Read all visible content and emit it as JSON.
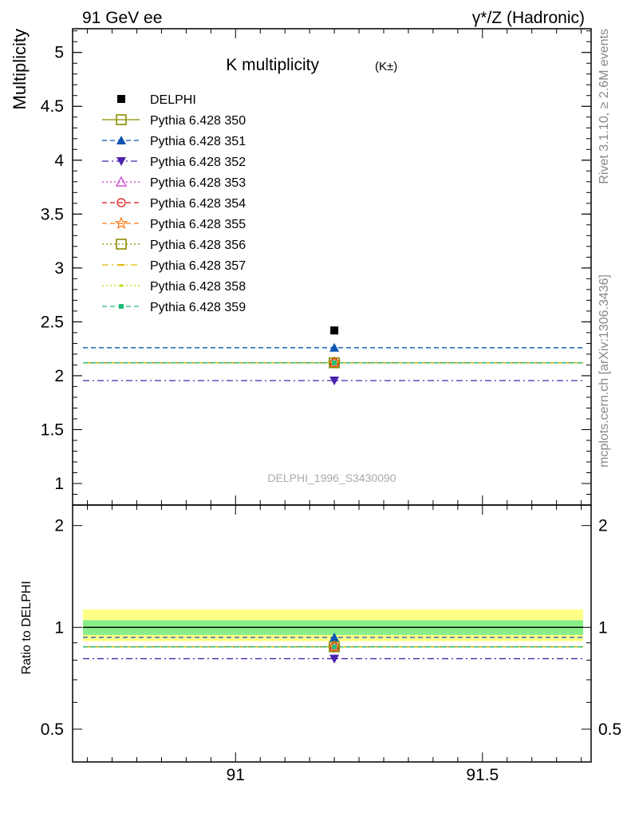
{
  "header": {
    "left": "91 GeV ee",
    "right": "γ*/Z (Hadronic)"
  },
  "side_labels": {
    "rivet": "Rivet 3.1.10, ≥ 2.6M events",
    "mcplots": "mcplots.cern.ch [arXiv:1306.3436]"
  },
  "chart_data": [
    {
      "type": "scatter",
      "title": "K multiplicity",
      "title_suffix": "(K±)",
      "ylabel": "Multiplicity",
      "xlabel": "",
      "xlim": [
        90.67,
        91.72
      ],
      "ylim": [
        0.8,
        5.22
      ],
      "yticks": [
        1,
        1.5,
        2,
        2.5,
        3,
        3.5,
        4,
        4.5,
        5
      ],
      "ytick_labels": [
        "1",
        "1.5",
        "2",
        "2.5",
        "3",
        "3.5",
        "4",
        "4.5",
        "5"
      ],
      "watermark": "DELPHI_1996_S3430090",
      "legend_position": "top-left",
      "reference": {
        "name": "DELPHI",
        "x": 91.2,
        "y": 2.42
      },
      "series": [
        {
          "name": "Pythia 6.428 350",
          "value": 2.12,
          "color": "#8b8b00",
          "marker": "square-open",
          "dash": "solid"
        },
        {
          "name": "Pythia 6.428 351",
          "value": 2.26,
          "color": "#0b55b0",
          "marker": "triangle-up",
          "dash": "dashed"
        },
        {
          "name": "Pythia 6.428 352",
          "value": 1.955,
          "color": "#4b22aa",
          "marker": "triangle-down",
          "dash": "dashdot"
        },
        {
          "name": "Pythia 6.428 353",
          "value": 2.12,
          "color": "#cc33cc",
          "marker": "triangle-open",
          "dash": "dotted"
        },
        {
          "name": "Pythia 6.428 354",
          "value": 2.12,
          "color": "#dd1111",
          "marker": "circle-open",
          "dash": "dashed"
        },
        {
          "name": "Pythia 6.428 355",
          "value": 2.12,
          "color": "#ff7711",
          "marker": "star-open",
          "dash": "dashed"
        },
        {
          "name": "Pythia 6.428 356",
          "value": 2.12,
          "color": "#8b8b00",
          "marker": "square-open",
          "dash": "dotted"
        },
        {
          "name": "Pythia 6.428 357",
          "value": 2.12,
          "color": "#ddbb00",
          "marker": "dash-marker",
          "dash": "dashdot"
        },
        {
          "name": "Pythia 6.428 358",
          "value": 2.12,
          "color": "#bbdd00",
          "marker": "dot",
          "dash": "dotted"
        },
        {
          "name": "Pythia 6.428 359",
          "value": 2.12,
          "color": "#22bb77",
          "marker": "square-small",
          "dash": "dashed"
        }
      ]
    },
    {
      "type": "scatter",
      "title": "",
      "ylabel": "Ratio to DELPHI",
      "xlabel": "",
      "xlim": [
        90.67,
        91.72
      ],
      "ylim": [
        0.4,
        2.3
      ],
      "yscale": "log",
      "yticks": [
        0.5,
        1,
        2
      ],
      "ytick_labels": [
        "0.5",
        "1",
        "2"
      ],
      "xticks": [
        91,
        91.5
      ],
      "xtick_labels": [
        "91",
        "91.5"
      ],
      "band_inner": [
        0.95,
        1.05
      ],
      "band_outer": [
        0.91,
        1.13
      ],
      "ratios": [
        0.876,
        0.934,
        0.808,
        0.876,
        0.876,
        0.876,
        0.876,
        0.876,
        0.876,
        0.876
      ]
    }
  ]
}
